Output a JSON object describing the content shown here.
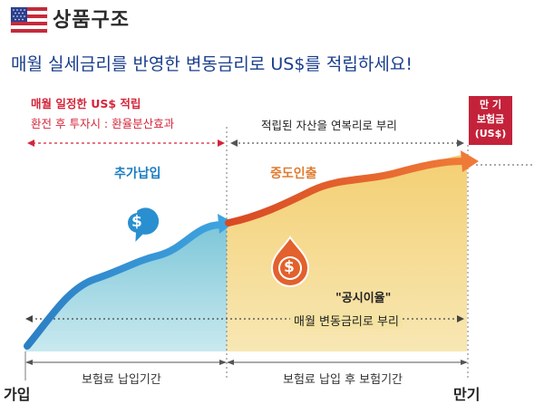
{
  "header": {
    "title": "상품구조",
    "headline": "매월 실세금리를 반영한 변동금리로 US$를 적립하세요!"
  },
  "left_section": {
    "line1": "매월 일정한 US$ 적립",
    "line2": "환전 후 투자시 : 환율분산효과"
  },
  "right_section": {
    "line1": "적립된 자산을 연복리로 부리"
  },
  "maturity_box": {
    "line1": "만 기",
    "line2": "보험금",
    "line3": "(US$)"
  },
  "labels": {
    "additional_payment": "추가납입",
    "mid_withdrawal": "중도인출",
    "public_rate": "\"공시이율\"",
    "monthly_rate": "매월 변동금리로 부리",
    "payment_period": "보험료 납입기간",
    "post_payment_period": "보험료 납입 후 보험기간",
    "join": "가입",
    "maturity": "만기"
  },
  "icons": {
    "flag": "us-flag-icon",
    "blue_pin": "dollar-pin-icon",
    "orange_pin": "dollar-drop-icon",
    "dollar_symbol": "$"
  },
  "colors": {
    "title": "#2a2a2a",
    "headline": "#1a3e8c",
    "red": "#d3263a",
    "blue": "#2a8fd0",
    "orange": "#e2612c",
    "blue_fill": "#9fd4df",
    "yellow_fill": "#f2d98e"
  }
}
